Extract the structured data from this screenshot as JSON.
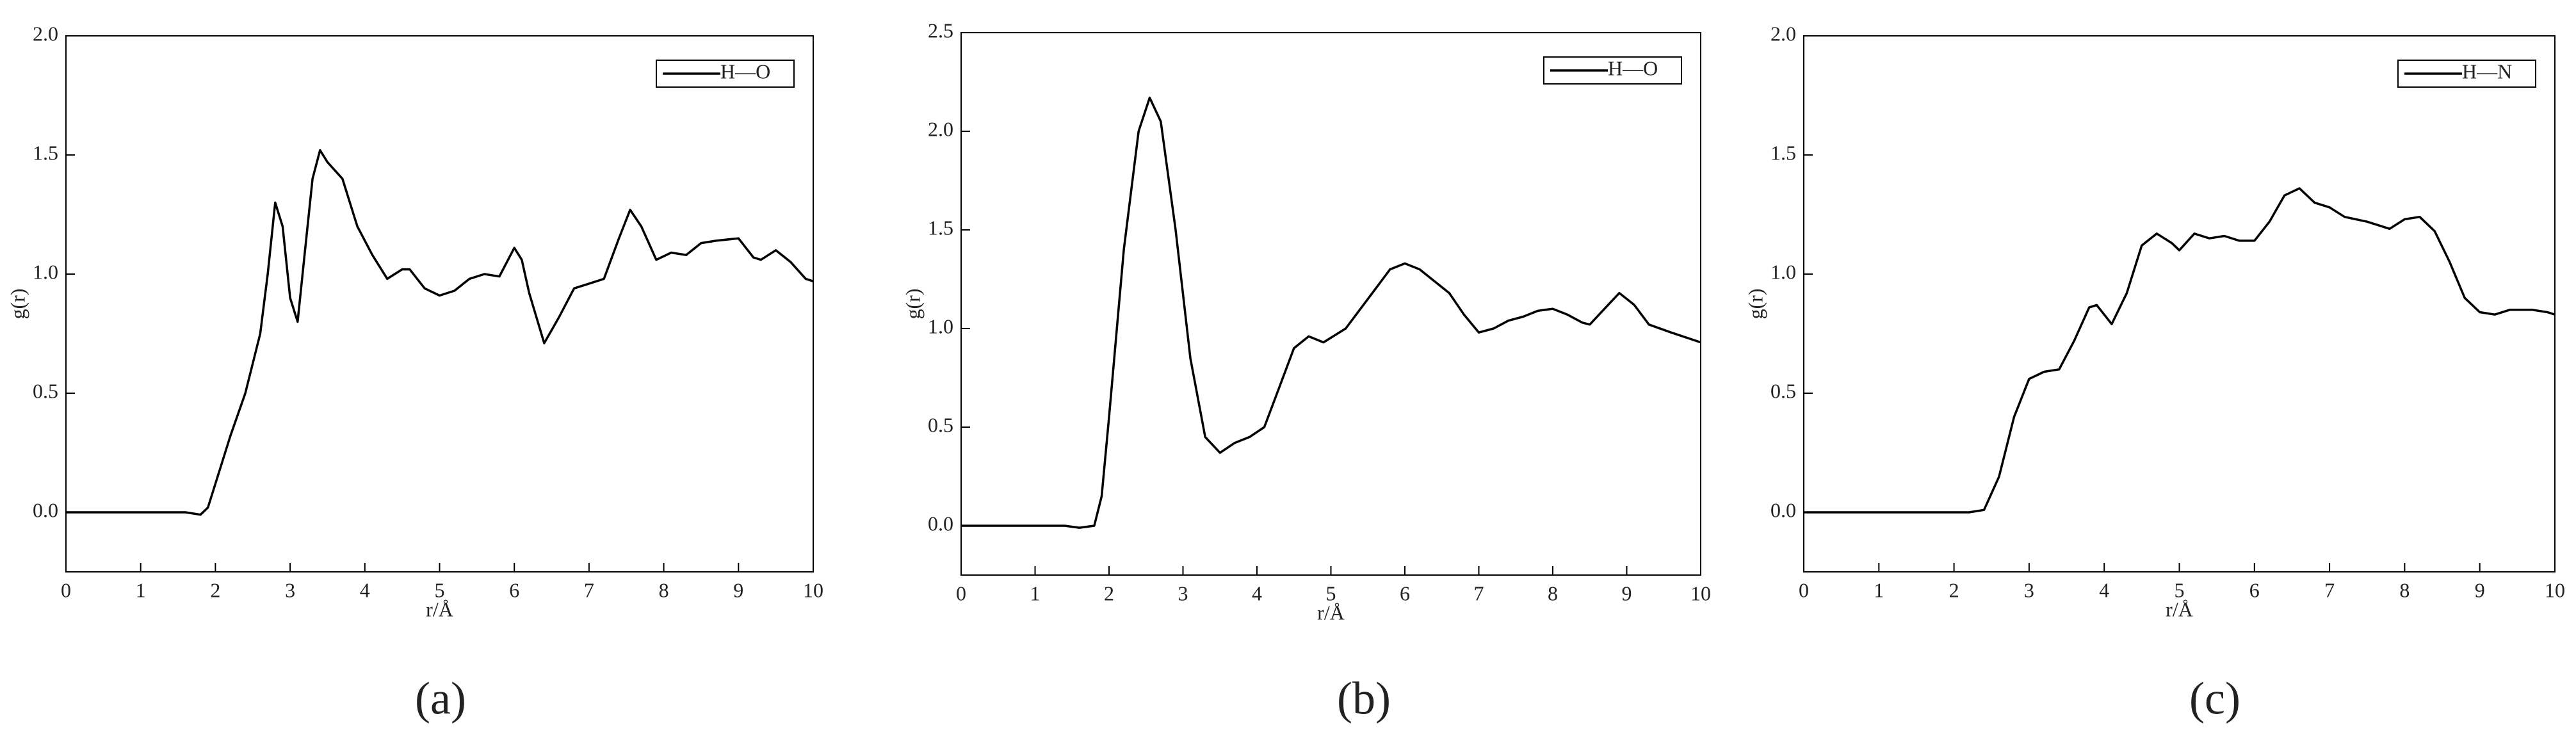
{
  "chart_data": [
    {
      "type": "line",
      "label": "(a)",
      "xlabel": "r/Å",
      "ylabel": "g(r)",
      "legend": "upper right",
      "x": [
        0,
        1.4,
        1.6,
        1.8,
        1.9,
        2.0,
        2.2,
        2.4,
        2.6,
        2.7,
        2.8,
        2.9,
        3.0,
        3.1,
        3.2,
        3.3,
        3.4,
        3.5,
        3.7,
        3.9,
        4.1,
        4.3,
        4.5,
        4.6,
        4.8,
        5.0,
        5.2,
        5.4,
        5.6,
        5.8,
        6.0,
        6.1,
        6.2,
        6.4,
        6.6,
        6.8,
        7.0,
        7.2,
        7.4,
        7.55,
        7.7,
        7.9,
        8.1,
        8.3,
        8.5,
        8.7,
        9.0,
        9.2,
        9.3,
        9.5,
        9.7,
        9.9,
        10
      ],
      "series": [
        {
          "name": "H—O",
          "color": "#000000",
          "values": [
            0,
            0,
            0,
            -0.01,
            0.02,
            0.12,
            0.32,
            0.5,
            0.75,
            1.0,
            1.3,
            1.2,
            0.9,
            0.8,
            1.1,
            1.4,
            1.52,
            1.47,
            1.4,
            1.2,
            1.08,
            0.98,
            1.02,
            1.02,
            0.94,
            0.91,
            0.93,
            0.98,
            1.0,
            0.99,
            1.11,
            1.06,
            0.92,
            0.71,
            0.82,
            0.94,
            0.96,
            0.98,
            1.15,
            1.27,
            1.2,
            1.06,
            1.09,
            1.08,
            1.13,
            1.14,
            1.15,
            1.07,
            1.06,
            1.1,
            1.05,
            0.98,
            0.97
          ]
        }
      ],
      "xlim": [
        0,
        10
      ],
      "xticks": [
        0,
        1,
        2,
        3,
        4,
        5,
        6,
        7,
        8,
        9,
        10
      ],
      "ylim": [
        -0.25,
        2.0
      ],
      "yticks": [
        {
          "value": 0,
          "label": "0.0"
        },
        {
          "value": 0.5,
          "label": "0.5"
        },
        {
          "value": 1,
          "label": "1.0"
        },
        {
          "value": 1.5,
          "label": "1.5"
        },
        {
          "value": 2,
          "label": "2.0"
        }
      ]
    },
    {
      "type": "line",
      "label": "(b)",
      "xlabel": "r/Å",
      "ylabel": "g(r)",
      "legend": "upper right",
      "x": [
        0,
        1.4,
        1.6,
        1.8,
        1.9,
        2.0,
        2.2,
        2.4,
        2.55,
        2.7,
        2.9,
        3.1,
        3.3,
        3.5,
        3.7,
        3.9,
        4.1,
        4.3,
        4.5,
        4.7,
        4.9,
        5.2,
        5.5,
        5.8,
        6.0,
        6.2,
        6.4,
        6.6,
        6.8,
        7.0,
        7.2,
        7.4,
        7.6,
        7.8,
        8.0,
        8.2,
        8.4,
        8.5,
        8.7,
        8.9,
        9.1,
        9.3,
        9.6,
        10
      ],
      "series": [
        {
          "name": "H—O",
          "color": "#000000",
          "values": [
            0,
            0,
            -0.01,
            0,
            0.15,
            0.55,
            1.4,
            2.0,
            2.17,
            2.05,
            1.5,
            0.85,
            0.45,
            0.37,
            0.42,
            0.45,
            0.5,
            0.7,
            0.9,
            0.96,
            0.93,
            1.0,
            1.15,
            1.3,
            1.33,
            1.3,
            1.24,
            1.18,
            1.07,
            0.98,
            1.0,
            1.04,
            1.06,
            1.09,
            1.1,
            1.07,
            1.03,
            1.02,
            1.1,
            1.18,
            1.12,
            1.02,
            0.98,
            0.93
          ]
        }
      ],
      "xlim": [
        0,
        10
      ],
      "xticks": [
        0,
        1,
        2,
        3,
        4,
        5,
        6,
        7,
        8,
        9,
        10
      ],
      "ylim": [
        -0.25,
        2.5
      ],
      "yticks": [
        {
          "value": 0,
          "label": "0.0"
        },
        {
          "value": 0.5,
          "label": "0.5"
        },
        {
          "value": 1,
          "label": "1.0"
        },
        {
          "value": 1.5,
          "label": "1.5"
        },
        {
          "value": 2,
          "label": "2.0"
        },
        {
          "value": 2.5,
          "label": "2.5"
        }
      ]
    },
    {
      "type": "line",
      "label": "(c)",
      "xlabel": "r/Å",
      "ylabel": "g(r)",
      "legend": "upper right",
      "x": [
        0,
        2.2,
        2.4,
        2.6,
        2.8,
        3.0,
        3.2,
        3.4,
        3.6,
        3.8,
        3.9,
        4.1,
        4.3,
        4.5,
        4.7,
        4.9,
        5.0,
        5.2,
        5.4,
        5.6,
        5.8,
        6.0,
        6.2,
        6.4,
        6.6,
        6.8,
        7.0,
        7.2,
        7.5,
        7.8,
        8.0,
        8.2,
        8.4,
        8.6,
        8.8,
        9.0,
        9.2,
        9.4,
        9.7,
        9.9,
        10
      ],
      "series": [
        {
          "name": "H—N",
          "color": "#000000",
          "values": [
            0,
            0,
            0.01,
            0.15,
            0.4,
            0.56,
            0.59,
            0.6,
            0.72,
            0.86,
            0.87,
            0.79,
            0.92,
            1.12,
            1.17,
            1.13,
            1.1,
            1.17,
            1.15,
            1.16,
            1.14,
            1.14,
            1.22,
            1.33,
            1.36,
            1.3,
            1.28,
            1.24,
            1.22,
            1.19,
            1.23,
            1.24,
            1.18,
            1.05,
            0.9,
            0.84,
            0.83,
            0.85,
            0.85,
            0.84,
            0.83
          ]
        }
      ],
      "xlim": [
        0,
        10
      ],
      "xticks": [
        0,
        1,
        2,
        3,
        4,
        5,
        6,
        7,
        8,
        9,
        10
      ],
      "ylim": [
        -0.25,
        2.0
      ],
      "yticks": [
        {
          "value": 0,
          "label": "0.0"
        },
        {
          "value": 0.5,
          "label": "0.5"
        },
        {
          "value": 1,
          "label": "1.0"
        },
        {
          "value": 1.5,
          "label": "1.5"
        },
        {
          "value": 2,
          "label": "2.0"
        }
      ]
    }
  ]
}
